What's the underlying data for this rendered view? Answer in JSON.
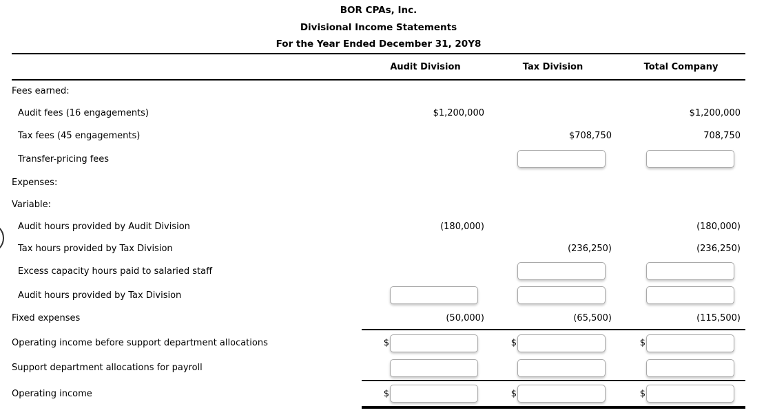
{
  "title": {
    "company": "BOR CPAs, Inc.",
    "statement": "Divisional Income Statements",
    "period": "For the Year Ended December 31, 20Y8"
  },
  "columns": {
    "audit": "Audit Division",
    "tax": "Tax Division",
    "total": "Total Company"
  },
  "symbols": {
    "dollar": "$"
  },
  "inputs": {
    "value": "",
    "placeholder": ""
  },
  "rows": {
    "fees_earned": {
      "label": "Fees earned:"
    },
    "audit_fees": {
      "label": "Audit fees (16 engagements)",
      "audit": "$1,200,000",
      "total": "$1,200,000"
    },
    "tax_fees": {
      "label": "Tax fees (45 engagements)",
      "tax": "$708,750",
      "total": "708,750"
    },
    "transfer_pricing": {
      "label": "Transfer-pricing fees"
    },
    "expenses": {
      "label": "Expenses:"
    },
    "variable": {
      "label": "Variable:"
    },
    "audit_hours_audit": {
      "label": "Audit hours provided by Audit Division",
      "audit": "(180,000)",
      "total": "(180,000)"
    },
    "tax_hours_tax": {
      "label": "Tax hours provided by Tax Division",
      "tax": "(236,250)",
      "total": "(236,250)"
    },
    "excess_capacity": {
      "label": "Excess capacity hours paid to salaried staff"
    },
    "audit_hours_tax": {
      "label": "Audit hours provided by Tax Division"
    },
    "fixed_expenses": {
      "label": "Fixed expenses",
      "audit": "(50,000)",
      "tax": "(65,500)",
      "total": "(115,500)"
    },
    "op_income_before": {
      "label": "Operating income before support department allocations"
    },
    "support_allocations": {
      "label": "Support department allocations for payroll"
    },
    "operating_income": {
      "label": "Operating income"
    }
  }
}
